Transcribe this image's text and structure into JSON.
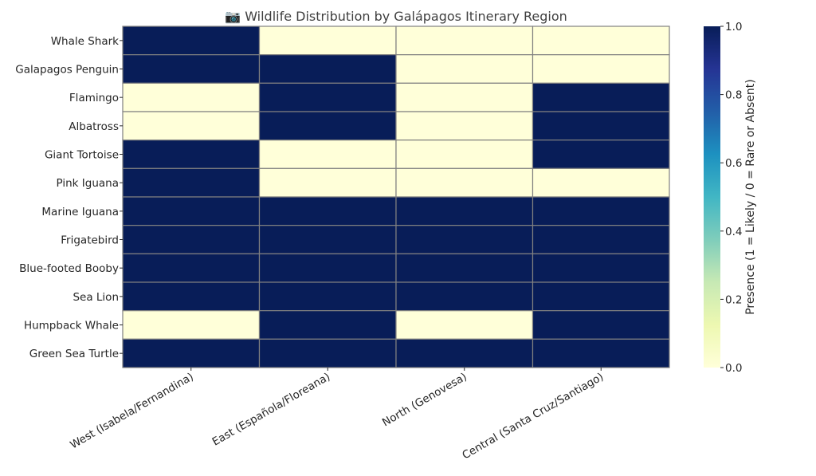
{
  "chart_data": {
    "type": "heatmap",
    "title": "📷 Wildlife Distribution by Galápagos Itinerary Region",
    "x_categories": [
      "West (Isabela/Fernandina)",
      "East (Española/Floreana)",
      "North (Genovesa)",
      "Central (Santa Cruz/Santiago)"
    ],
    "y_categories": [
      "Whale Shark",
      "Galapagos Penguin",
      "Flamingo",
      "Albatross",
      "Giant Tortoise",
      "Pink Iguana",
      "Marine Iguana",
      "Frigatebird",
      "Blue-footed Booby",
      "Sea Lion",
      "Humpback Whale",
      "Green Sea Turtle"
    ],
    "values": [
      [
        1,
        0,
        0,
        0
      ],
      [
        1,
        1,
        0,
        0
      ],
      [
        0,
        1,
        0,
        1
      ],
      [
        0,
        1,
        0,
        1
      ],
      [
        1,
        0,
        0,
        1
      ],
      [
        1,
        0,
        0,
        0
      ],
      [
        1,
        1,
        1,
        1
      ],
      [
        1,
        1,
        1,
        1
      ],
      [
        1,
        1,
        1,
        1
      ],
      [
        1,
        1,
        1,
        1
      ],
      [
        0,
        1,
        0,
        1
      ],
      [
        1,
        1,
        1,
        1
      ]
    ],
    "colorbar": {
      "label": "Presence (1 = Likely / 0 = Rare or Absent)",
      "range": [
        0,
        1
      ],
      "ticks": [
        "0.0",
        "0.2",
        "0.4",
        "0.6",
        "0.8",
        "1.0"
      ],
      "colormap": "YlGnBu",
      "color_low": "#ffffd9",
      "color_high": "#081d58"
    },
    "cell_border_color": "#808080"
  }
}
